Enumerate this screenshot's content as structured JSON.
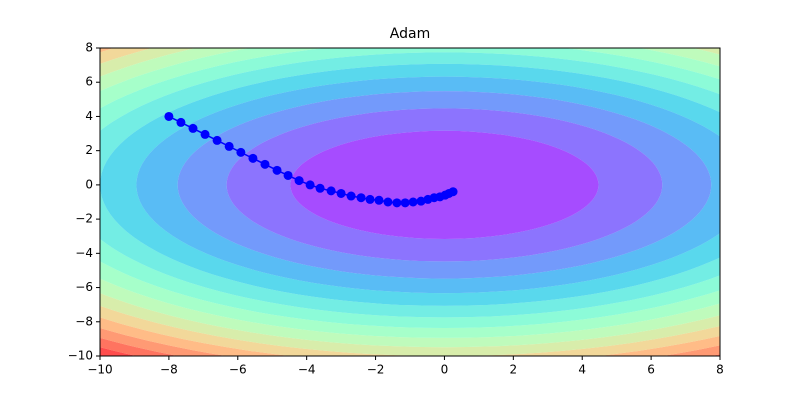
{
  "chart_data": {
    "type": "line",
    "title": "Adam",
    "x": [
      -8.0,
      -7.65,
      -7.3,
      -6.95,
      -6.6,
      -6.25,
      -5.91,
      -5.56,
      -5.21,
      -4.86,
      -4.54,
      -4.22,
      -3.9,
      -3.61,
      -3.29,
      -3.0,
      -2.71,
      -2.42,
      -2.16,
      -1.9,
      -1.64,
      -1.38,
      -1.14,
      -0.91,
      -0.68,
      -0.48,
      -0.3,
      -0.13,
      0.02,
      0.13,
      0.25
    ],
    "series": [
      {
        "color": "#0000ff",
        "values": [
          4.0,
          3.65,
          3.3,
          2.95,
          2.6,
          2.25,
          1.9,
          1.55,
          1.2,
          0.85,
          0.55,
          0.25,
          0.0,
          -0.2,
          -0.35,
          -0.5,
          -0.65,
          -0.75,
          -0.85,
          -0.9,
          -1.0,
          -1.05,
          -1.05,
          -1.0,
          -0.95,
          -0.85,
          -0.75,
          -0.7,
          -0.6,
          -0.5,
          -0.4
        ]
      }
    ],
    "xlim": [
      -10,
      8
    ],
    "ylim": [
      -10,
      8
    ],
    "xticks": [
      {
        "value": -10,
        "label": "−10"
      },
      {
        "value": -8,
        "label": "−8"
      },
      {
        "value": -6,
        "label": "−6"
      },
      {
        "value": -4,
        "label": "−4"
      },
      {
        "value": -2,
        "label": "−2"
      },
      0,
      2,
      4,
      6,
      8
    ],
    "yticks": [
      {
        "value": -10,
        "label": "−10"
      },
      {
        "value": -8,
        "label": "−8"
      },
      {
        "value": -6,
        "label": "−6"
      },
      {
        "value": -4,
        "label": "−4"
      },
      {
        "value": -2,
        "label": "−2"
      },
      0,
      2,
      4,
      6,
      8
    ]
  }
}
